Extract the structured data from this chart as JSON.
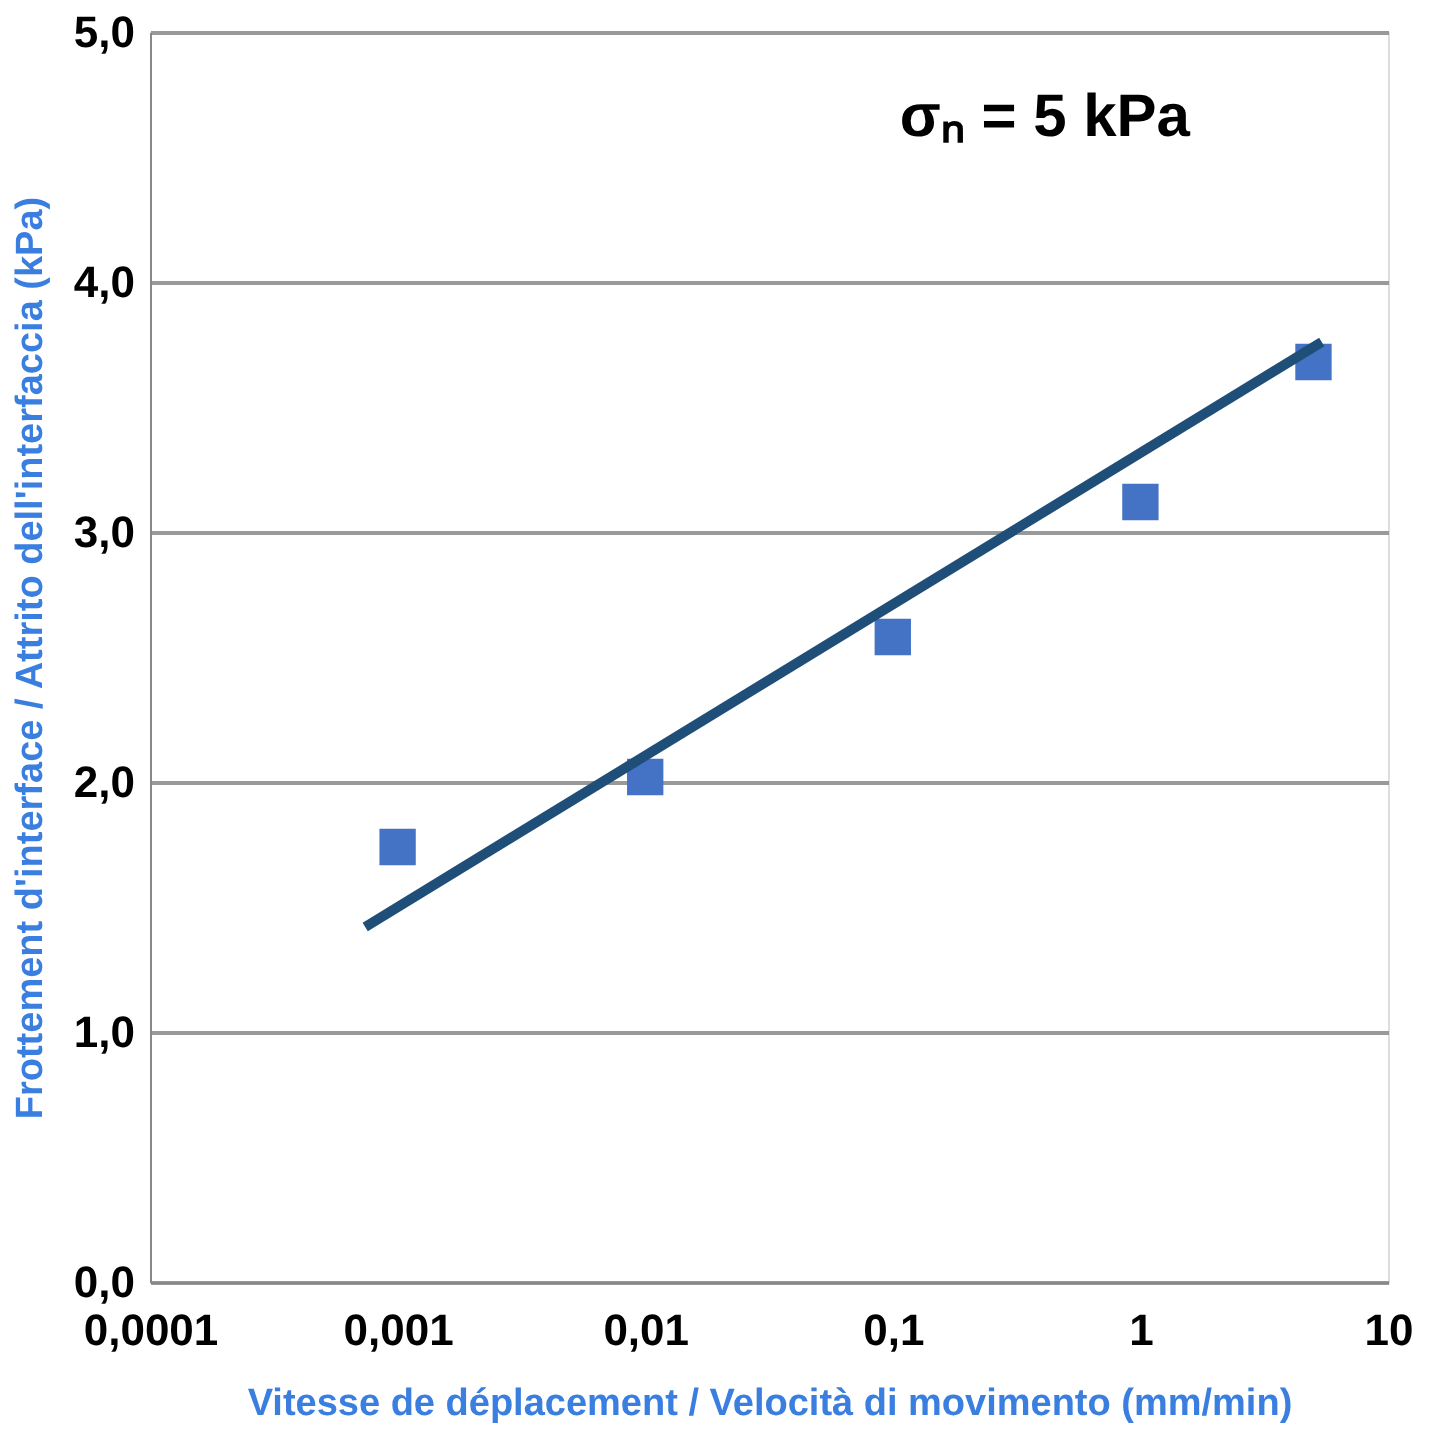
{
  "chart_data": {
    "type": "scatter",
    "xlabel": "Vitesse de déplacement / Velocità di movimento (mm/min)",
    "ylabel": "Frottement d'interface / Attrito dell'interfaccia (kPa)",
    "annotations": [
      "σₙ = 5 kPa"
    ],
    "log": "x",
    "xlim": [
      0.0001,
      10
    ],
    "xticks": [
      {
        "value": 0.0001,
        "label": "0,0001"
      },
      {
        "value": 0.001,
        "label": "0,001"
      },
      {
        "value": 0.01,
        "label": "0,01"
      },
      {
        "value": 0.1,
        "label": "0,1"
      },
      1,
      10
    ],
    "ylim": [
      0,
      5
    ],
    "yticks": [
      {
        "value": 0,
        "label": "0,0"
      },
      {
        "value": 1,
        "label": "1,0"
      },
      {
        "value": 2,
        "label": "2,0"
      },
      {
        "value": 3,
        "label": "3,0"
      },
      {
        "value": 4,
        "label": "4,0"
      },
      {
        "value": 5,
        "label": "5,0"
      }
    ],
    "grid": "y",
    "series": [
      {
        "color": "#4472c4",
        "marker": "square",
        "x": [
          0.001,
          0.01,
          0.1,
          1,
          5
        ],
        "values": [
          1.74,
          2.02,
          2.58,
          3.12,
          3.68
        ]
      },
      {
        "type": "line",
        "color": "#1f4e79",
        "x": [
          0.00074,
          5.4
        ],
        "values": [
          1.42,
          3.76
        ]
      }
    ]
  }
}
